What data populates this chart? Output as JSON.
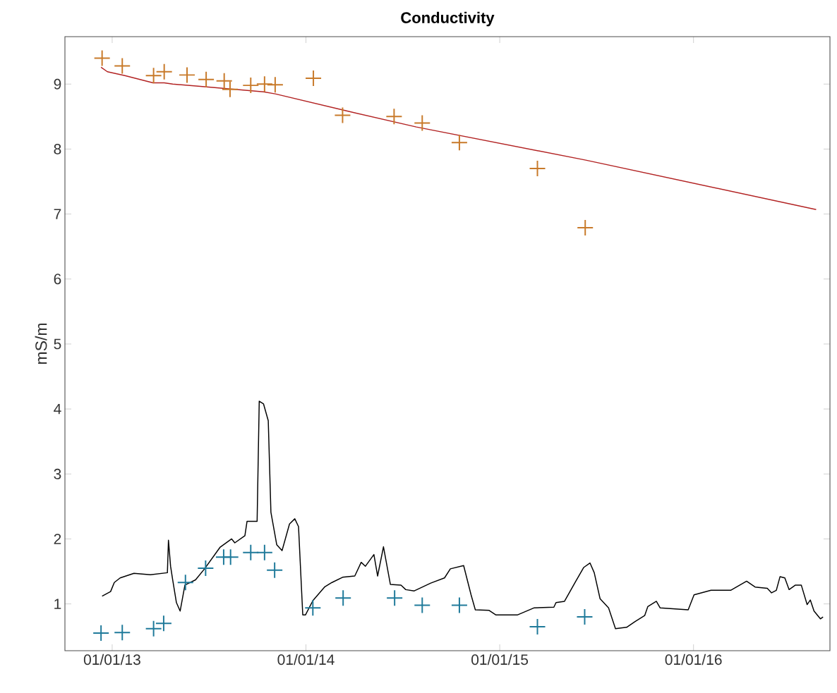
{
  "chart_data": {
    "type": "line",
    "title": "Conductivity",
    "ylabel": "mS/m",
    "xlim": [
      "2012-10-04",
      "2016-09-14"
    ],
    "ylim": [
      0.28,
      9.73
    ],
    "xticks": [
      {
        "value": "2013-01-01",
        "label": "01/01/13"
      },
      {
        "value": "2014-01-01",
        "label": "01/01/14"
      },
      {
        "value": "2015-01-01",
        "label": "01/01/15"
      },
      {
        "value": "2016-01-01",
        "label": "01/01/16"
      }
    ],
    "yticks": [
      1,
      2,
      3,
      4,
      5,
      6,
      7,
      8,
      9
    ],
    "series": [
      {
        "color": "#b22222",
        "x": [
          "2012-12-11",
          "2012-12-23",
          "2013-01-25",
          "2013-03-19",
          "2013-04-09",
          "2013-04-25",
          "2013-06-24",
          "2013-10-13",
          "2013-11-04",
          "2014-03-17",
          "2014-07-28",
          "2015-06-12",
          "2016-08-19"
        ],
        "values": [
          9.26,
          9.19,
          9.13,
          9.02,
          9.02,
          9.0,
          8.96,
          8.88,
          8.85,
          8.59,
          8.34,
          7.83,
          7.07
        ]
      },
      {
        "type": "scatter",
        "marker": "cross",
        "color": "#c87a2a",
        "x": [
          "2012-12-13",
          "2013-01-20",
          "2013-03-20",
          "2013-04-09",
          "2013-05-22",
          "2013-06-27",
          "2013-07-31",
          "2013-08-11",
          "2013-09-19",
          "2013-10-15",
          "2013-11-04",
          "2014-01-15",
          "2014-03-11",
          "2014-06-16",
          "2014-08-08",
          "2014-10-17",
          "2015-03-13",
          "2015-06-11"
        ],
        "values": [
          9.4,
          9.28,
          9.13,
          9.19,
          9.14,
          9.07,
          9.05,
          8.92,
          8.98,
          9.0,
          8.99,
          9.09,
          8.52,
          8.5,
          8.4,
          8.1,
          7.7,
          6.79
        ]
      },
      {
        "color": "#000000",
        "x": [
          "2012-12-13",
          "2012-12-29",
          "2013-01-05",
          "2013-01-16",
          "2013-02-11",
          "2013-03-14",
          "2013-04-15",
          "2013-04-17",
          "2013-04-21",
          "2013-04-25",
          "2013-05-02",
          "2013-05-09",
          "2013-05-18",
          "2013-06-07",
          "2013-06-24",
          "2013-07-23",
          "2013-08-14",
          "2013-08-20",
          "2013-09-08",
          "2013-09-12",
          "2013-10-01",
          "2013-10-05",
          "2013-10-13",
          "2013-10-22",
          "2013-10-27",
          "2013-11-07",
          "2013-11-17",
          "2013-12-01",
          "2013-12-11",
          "2013-12-18",
          "2013-12-26",
          "2013-12-31",
          "2014-01-14",
          "2014-02-05",
          "2014-02-19",
          "2014-03-11",
          "2014-04-03",
          "2014-04-15",
          "2014-04-23",
          "2014-05-09",
          "2014-05-16",
          "2014-05-27",
          "2014-06-09",
          "2014-06-29",
          "2014-07-08",
          "2014-07-24",
          "2014-08-24",
          "2014-09-19",
          "2014-09-30",
          "2014-10-25",
          "2014-11-08",
          "2014-11-16",
          "2014-12-12",
          "2014-12-25",
          "2015-02-03",
          "2015-03-07",
          "2015-04-13",
          "2015-04-17",
          "2015-05-03",
          "2015-05-23",
          "2015-06-08",
          "2015-06-20",
          "2015-06-28",
          "2015-07-09",
          "2015-07-25",
          "2015-08-07",
          "2015-08-28",
          "2015-09-13",
          "2015-10-01",
          "2015-10-07",
          "2015-10-23",
          "2015-10-30",
          "2015-12-22",
          "2016-01-02",
          "2016-02-03",
          "2016-03-11",
          "2016-04-10",
          "2016-04-26",
          "2016-05-19",
          "2016-05-27",
          "2016-06-05",
          "2016-06-12",
          "2016-06-21",
          "2016-06-29",
          "2016-07-11",
          "2016-07-22",
          "2016-08-02",
          "2016-08-08",
          "2016-08-15",
          "2016-08-27",
          "2016-09-01"
        ],
        "values": [
          1.12,
          1.19,
          1.33,
          1.4,
          1.47,
          1.45,
          1.48,
          1.98,
          1.58,
          1.37,
          1.02,
          0.89,
          1.29,
          1.37,
          1.54,
          1.87,
          2.0,
          1.94,
          2.05,
          2.27,
          2.27,
          4.12,
          4.08,
          3.82,
          2.41,
          1.91,
          1.82,
          2.23,
          2.31,
          2.19,
          0.83,
          0.83,
          1.05,
          1.26,
          1.33,
          1.41,
          1.43,
          1.64,
          1.58,
          1.76,
          1.43,
          1.88,
          1.3,
          1.29,
          1.22,
          1.2,
          1.32,
          1.4,
          1.54,
          1.59,
          1.14,
          0.91,
          0.9,
          0.83,
          0.83,
          0.94,
          0.95,
          1.02,
          1.04,
          1.33,
          1.56,
          1.63,
          1.48,
          1.08,
          0.94,
          0.62,
          0.64,
          0.73,
          0.82,
          0.96,
          1.04,
          0.94,
          0.91,
          1.14,
          1.21,
          1.21,
          1.35,
          1.26,
          1.24,
          1.17,
          1.21,
          1.42,
          1.4,
          1.22,
          1.29,
          1.29,
          0.99,
          1.06,
          0.89,
          0.77,
          0.8
        ]
      },
      {
        "type": "scatter",
        "marker": "cross",
        "color": "#1f7a9a",
        "x": [
          "2012-12-11",
          "2013-01-20",
          "2013-03-20",
          "2013-04-08",
          "2013-05-19",
          "2013-06-26",
          "2013-07-30",
          "2013-08-12",
          "2013-09-19",
          "2013-10-15",
          "2013-11-03",
          "2014-01-14",
          "2014-03-12",
          "2014-06-17",
          "2014-08-08",
          "2014-10-17",
          "2015-03-13",
          "2015-06-10"
        ],
        "values": [
          0.55,
          0.56,
          0.62,
          0.7,
          1.33,
          1.55,
          1.72,
          1.72,
          1.79,
          1.79,
          1.52,
          0.94,
          1.09,
          1.09,
          0.98,
          0.98,
          0.65,
          0.8
        ]
      }
    ]
  }
}
